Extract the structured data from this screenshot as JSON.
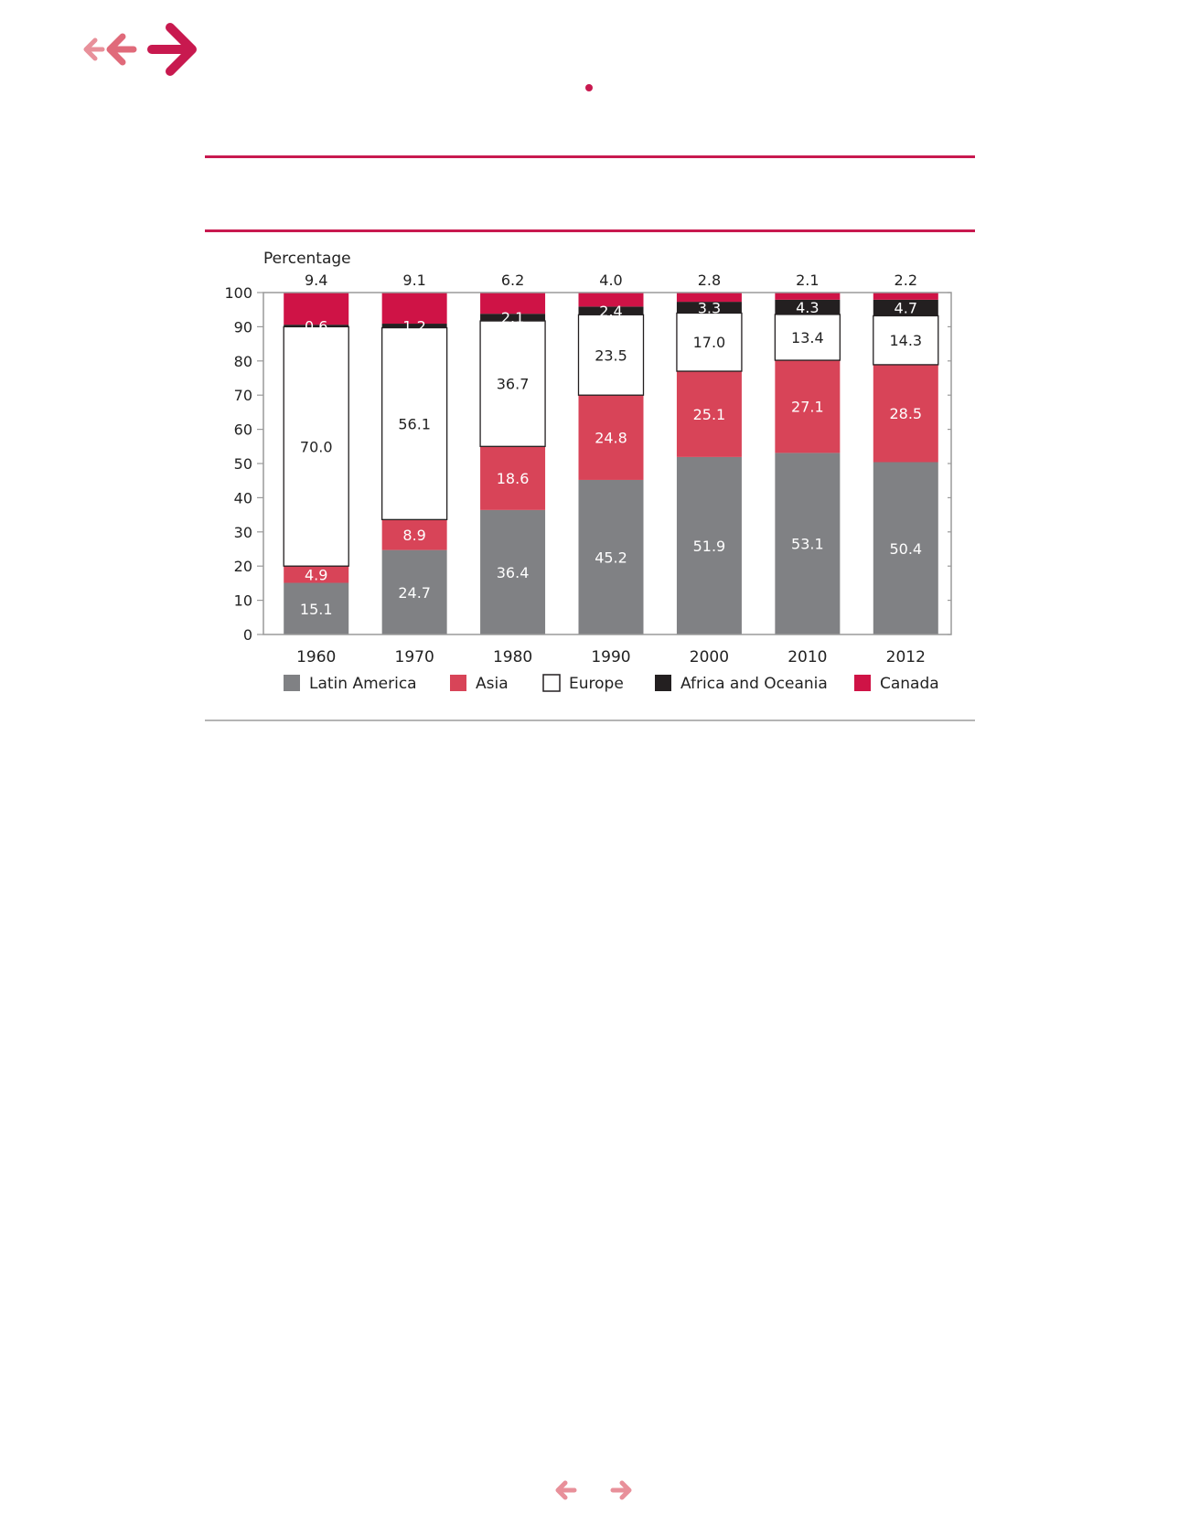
{
  "colors": {
    "accent": "#c8194f",
    "arrow_light": "#e8909a",
    "latin_america": "#808184",
    "asia": "#d84458",
    "europe": "#ffffff",
    "africa_oceania": "#231f20",
    "canada": "#cf1346",
    "axis": "#9a9a9a"
  },
  "chart_data": {
    "type": "bar",
    "stacked": true,
    "ylabel": "Percentage",
    "ylim": [
      0,
      100
    ],
    "yticks": [
      0,
      10,
      20,
      30,
      40,
      50,
      60,
      70,
      80,
      90,
      100
    ],
    "categories": [
      "1960",
      "1970",
      "1980",
      "1990",
      "2000",
      "2010",
      "2012"
    ],
    "series": [
      {
        "name": "Latin America",
        "color": "#808184",
        "label_color": "#ffffff",
        "values": [
          15.1,
          24.7,
          36.4,
          45.2,
          51.9,
          53.1,
          50.4
        ],
        "labels": [
          "15.1",
          "24.7",
          "36.4",
          "45.2",
          "51.9",
          "53.1",
          "50.4"
        ]
      },
      {
        "name": "Asia",
        "color": "#d84458",
        "label_color": "#ffffff",
        "values": [
          4.9,
          8.9,
          18.6,
          24.8,
          25.1,
          27.1,
          28.5
        ],
        "labels": [
          "4.9",
          "8.9",
          "18.6",
          "24.8",
          "25.1",
          "27.1",
          "28.5"
        ]
      },
      {
        "name": "Europe",
        "color": "#ffffff",
        "label_color": "#222222",
        "values": [
          70.0,
          56.1,
          36.7,
          23.5,
          17.0,
          13.4,
          14.3
        ],
        "labels": [
          "70.0",
          "56.1",
          "36.7",
          "23.5",
          "17.0",
          "13.4",
          "14.3"
        ]
      },
      {
        "name": "Africa and Oceania",
        "color": "#231f20",
        "label_color": "#ffffff",
        "values": [
          0.6,
          1.2,
          2.1,
          2.4,
          3.3,
          4.3,
          4.7
        ],
        "labels": [
          "0.6",
          "1.2",
          "2.1",
          "2.4",
          "3.3",
          "4.3",
          "4.7"
        ]
      },
      {
        "name": "Canada",
        "color": "#cf1346",
        "label_color": "#222222",
        "values": [
          9.4,
          9.1,
          6.2,
          4.0,
          2.8,
          2.1,
          2.2
        ],
        "labels": [
          "9.4",
          "9.1",
          "6.2",
          "4.0",
          "2.8",
          "2.1",
          "2.2"
        ]
      }
    ],
    "legend_position": "bottom",
    "grid": false
  }
}
